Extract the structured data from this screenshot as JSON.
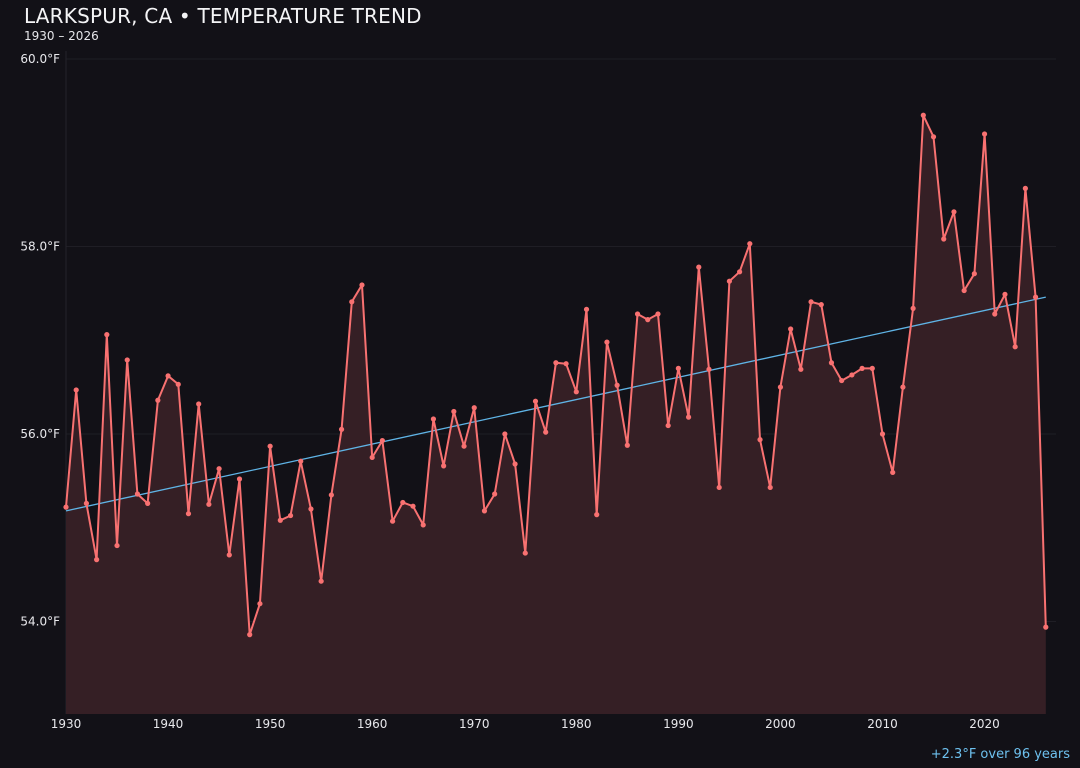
{
  "chart_data": {
    "type": "line",
    "title": "LARKSPUR, CA • TEMPERATURE TREND",
    "subtitle": "1930 – 2026",
    "xlabel": "",
    "ylabel": "",
    "xlim": [
      1930,
      2027
    ],
    "ylim": [
      53.0,
      60.0
    ],
    "grid": "horizontal",
    "x_ticks": [
      "1930",
      "1940",
      "1950",
      "1960",
      "1970",
      "1980",
      "1990",
      "2000",
      "2010",
      "2020"
    ],
    "y_ticks": [
      "54.0°F",
      "56.0°F",
      "58.0°F",
      "60.0°F"
    ],
    "colors": {
      "series": "#f87171",
      "fill": "#351f25",
      "trend": "#5fb4e6",
      "background": "#121117"
    },
    "x": [
      1930,
      1931,
      1932,
      1933,
      1934,
      1935,
      1936,
      1937,
      1938,
      1939,
      1940,
      1941,
      1942,
      1943,
      1944,
      1945,
      1946,
      1947,
      1948,
      1949,
      1950,
      1951,
      1952,
      1953,
      1954,
      1955,
      1956,
      1957,
      1958,
      1959,
      1960,
      1961,
      1962,
      1963,
      1964,
      1965,
      1966,
      1967,
      1968,
      1969,
      1970,
      1971,
      1972,
      1973,
      1974,
      1975,
      1976,
      1977,
      1978,
      1979,
      1980,
      1981,
      1982,
      1983,
      1984,
      1985,
      1986,
      1987,
      1988,
      1989,
      1990,
      1991,
      1992,
      1993,
      1994,
      1995,
      1996,
      1997,
      1998,
      1999,
      2000,
      2001,
      2002,
      2003,
      2004,
      2005,
      2006,
      2007,
      2008,
      2009,
      2010,
      2011,
      2012,
      2013,
      2014,
      2015,
      2016,
      2017,
      2018,
      2019,
      2020,
      2021,
      2022,
      2023,
      2024,
      2025,
      2026
    ],
    "values": [
      55.22,
      56.47,
      55.26,
      54.66,
      57.06,
      54.81,
      56.79,
      55.36,
      55.26,
      56.36,
      56.62,
      56.53,
      55.15,
      56.32,
      55.25,
      55.63,
      54.71,
      55.52,
      53.86,
      54.19,
      55.87,
      55.08,
      55.13,
      55.71,
      55.2,
      54.43,
      55.35,
      56.05,
      57.41,
      57.59,
      55.75,
      55.93,
      55.07,
      55.27,
      55.23,
      55.03,
      56.16,
      55.66,
      56.24,
      55.87,
      56.28,
      55.18,
      55.36,
      56.0,
      55.68,
      54.73,
      56.35,
      56.02,
      56.76,
      56.75,
      56.45,
      57.33,
      55.14,
      56.98,
      56.52,
      55.88,
      57.28,
      57.22,
      57.28,
      56.09,
      56.7,
      56.18,
      57.78,
      56.69,
      55.43,
      57.63,
      57.73,
      58.03,
      55.94,
      55.43,
      56.5,
      57.12,
      56.69,
      57.41,
      57.38,
      56.76,
      56.57,
      56.63,
      56.7,
      56.7,
      56.0,
      55.59,
      56.5,
      57.34,
      59.4,
      59.17,
      58.08,
      58.37,
      57.53,
      57.71,
      59.2,
      57.28,
      57.49,
      56.93,
      58.62,
      57.46,
      53.94
    ],
    "trend": {
      "start": [
        1930,
        55.18
      ],
      "end": [
        2026,
        57.46
      ]
    },
    "annotation": "+2.3°F over 96 years"
  }
}
